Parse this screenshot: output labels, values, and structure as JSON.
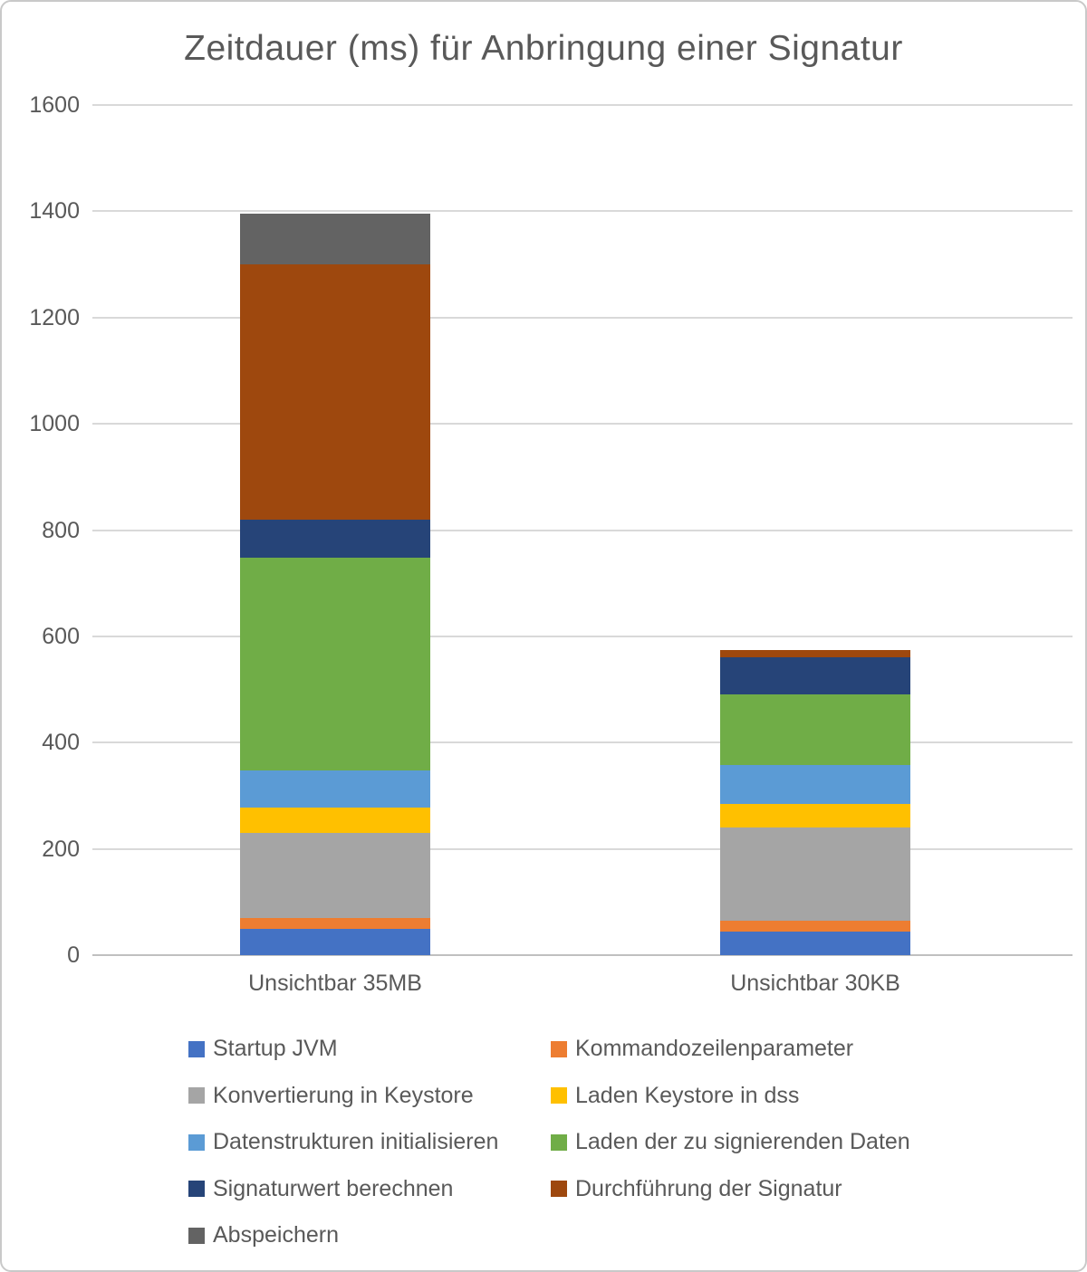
{
  "chart_data": {
    "type": "bar",
    "stacked": true,
    "title": "Zeitdauer (ms) für Anbringung einer Signatur",
    "categories": [
      "Unsichtbar 35MB",
      "Unsichtbar 30KB"
    ],
    "series": [
      {
        "name": "Startup JVM",
        "color": "#4472C4",
        "values": [
          50,
          45
        ]
      },
      {
        "name": "Kommandozeilenparameter",
        "color": "#ED7D31",
        "values": [
          20,
          20
        ]
      },
      {
        "name": "Konvertierung in Keystore",
        "color": "#A5A5A5",
        "values": [
          160,
          175
        ]
      },
      {
        "name": "Laden Keystore in dss",
        "color": "#FFC000",
        "values": [
          48,
          45
        ]
      },
      {
        "name": "Datenstrukturen initialisieren",
        "color": "#5B9BD5",
        "values": [
          70,
          73
        ]
      },
      {
        "name": "Laden der zu signierenden Daten",
        "color": "#70AD47",
        "values": [
          400,
          132
        ]
      },
      {
        "name": "Signaturwert berechnen",
        "color": "#264478",
        "values": [
          72,
          71
        ]
      },
      {
        "name": "Durchführung der Signatur",
        "color": "#9E480E",
        "values": [
          480,
          14
        ]
      },
      {
        "name": "Abspeichern",
        "color": "#636363",
        "values": [
          95,
          0
        ]
      }
    ],
    "ylim": [
      0,
      1600
    ],
    "ytick_step": 200,
    "yticks": [
      0,
      200,
      400,
      600,
      800,
      1000,
      1200,
      1400,
      1600
    ],
    "grid": true,
    "legend_position": "bottom",
    "text_color": "#595959",
    "gridline_color": "#d9d9d9"
  }
}
